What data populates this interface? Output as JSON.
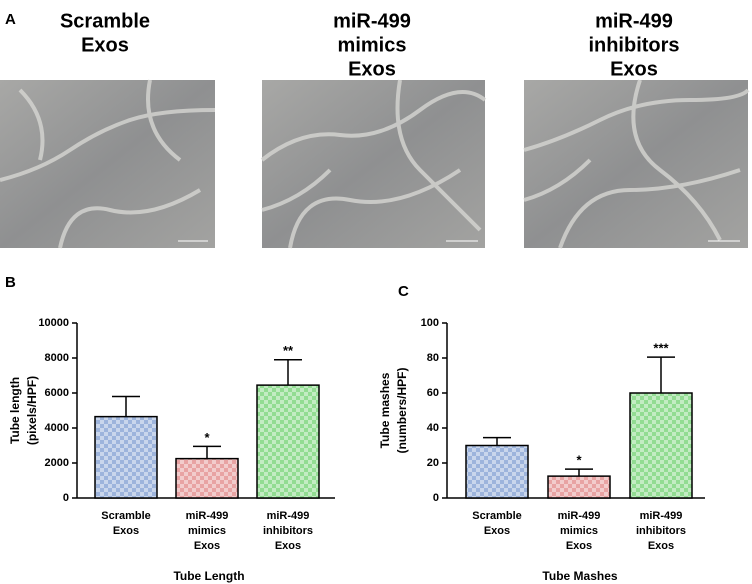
{
  "panel_a": {
    "label": "A",
    "micrographs": [
      {
        "title": [
          "Scramble",
          "Exos"
        ]
      },
      {
        "title": [
          "miR-499",
          "mimics",
          "Exos"
        ]
      },
      {
        "title": [
          "miR-499",
          "inhibitors",
          "Exos"
        ]
      }
    ]
  },
  "chart_data": [
    {
      "type": "bar",
      "panel_label": "B",
      "x_title": "Tube Length",
      "y_title": [
        "Tube length",
        "(pixels/HPF)"
      ],
      "categories": [
        [
          "Scramble",
          "Exos"
        ],
        [
          "miR-499",
          "mimics",
          "Exos"
        ],
        [
          "miR-499",
          "inhibitors",
          "Exos"
        ]
      ],
      "values": [
        4650,
        2250,
        6450
      ],
      "errors": [
        1150,
        700,
        1450
      ],
      "significance": [
        null,
        "*",
        "**"
      ],
      "colors": [
        "#9db4dc",
        "#e8a3a3",
        "#92dc92"
      ],
      "ylim": [
        0,
        10000
      ],
      "yticks": [
        0,
        2000,
        4000,
        6000,
        8000,
        10000
      ]
    },
    {
      "type": "bar",
      "panel_label": "C",
      "x_title": "Tube Mashes",
      "y_title": [
        "Tube mashes",
        "(numbers/HPF)"
      ],
      "categories": [
        [
          "Scramble",
          "Exos"
        ],
        [
          "miR-499",
          "mimics",
          "Exos"
        ],
        [
          "miR-499",
          "inhibitors",
          "Exos"
        ]
      ],
      "values": [
        30,
        12.5,
        60
      ],
      "errors": [
        4.5,
        4,
        20.5
      ],
      "significance": [
        null,
        "*",
        "***"
      ],
      "colors": [
        "#9db4dc",
        "#e8a3a3",
        "#92dc92"
      ],
      "ylim": [
        0,
        100
      ],
      "yticks": [
        0,
        20,
        40,
        60,
        80,
        100
      ]
    }
  ]
}
